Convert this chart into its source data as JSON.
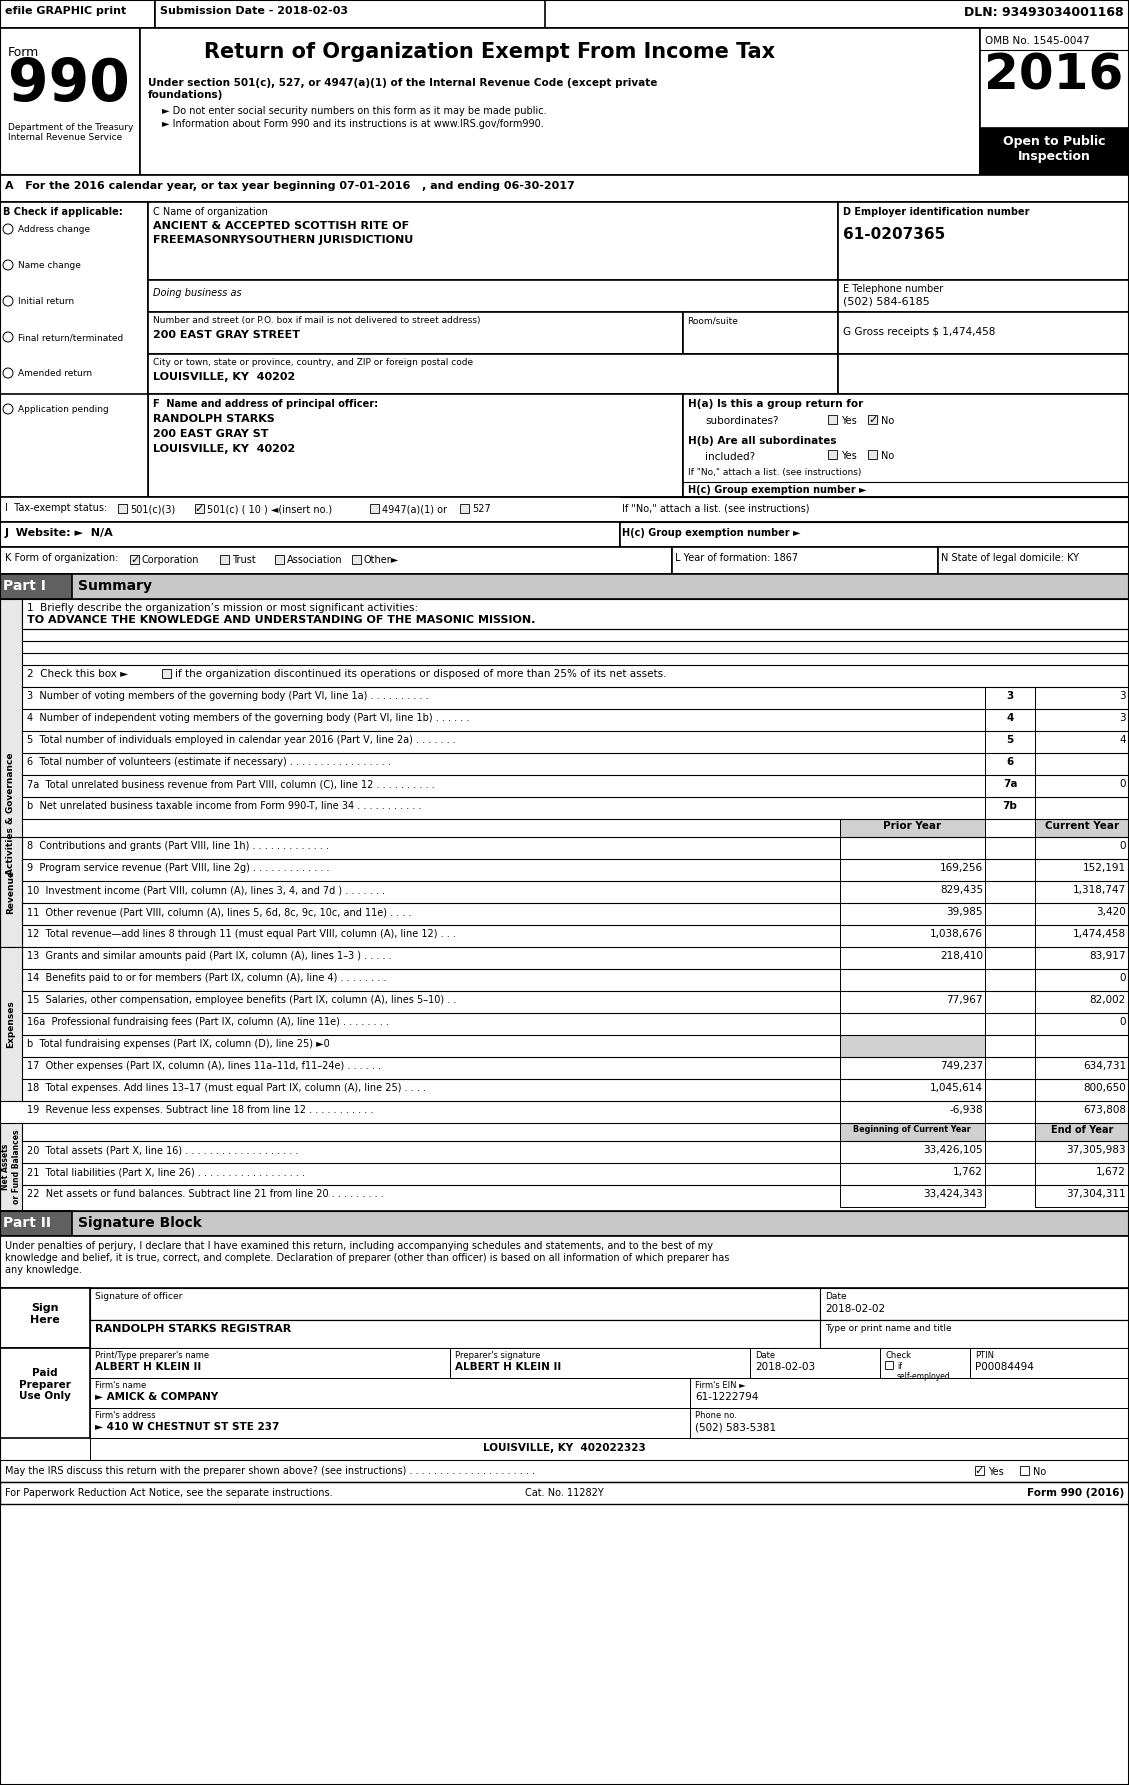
{
  "title": "Return of Organization Exempt From Income Tax",
  "year": "2016",
  "omb": "OMB No. 1545-0047",
  "open_to_public": "Open to Public\nInspection",
  "efile_text": "efile GRAPHIC print",
  "submission_date": "Submission Date - 2018-02-03",
  "dln": "DLN: 93493034001168",
  "form_number": "990",
  "under_section": "Under section 501(c), 527, or 4947(a)(1) of the Internal Revenue Code (except private foundations)",
  "bullet1": "► Do not enter social security numbers on this form as it may be made public.",
  "bullet2": "► Information about Form 990 and its instructions is at www.IRS.gov/form990.",
  "dept_treasury": "Department of the Treasury\nInternal Revenue Service",
  "section_a": "A   For the 2016 calendar year, or tax year beginning 07-01-2016   , and ending 06-30-2017",
  "section_b_label": "B Check if applicable:",
  "checkboxes_b": [
    "Address change",
    "Name change",
    "Initial return",
    "Final return/terminated",
    "Amended return",
    "Application pending"
  ],
  "org_name": "ANCIENT & ACCEPTED SCOTTISH RITE OF\nFREEMASONRYSOUTHERN JURISDICTIONU",
  "doing_business": "Doing business as",
  "address": "200 EAST GRAY STREET",
  "city": "LOUISVILLE, KY  40202",
  "ein": "61-0207365",
  "phone": "(502) 584-6185",
  "gross_receipts": "G Gross receipts $ 1,474,458",
  "principal_name": "RANDOLPH STARKS",
  "principal_address": "200 EAST GRAY ST",
  "principal_city": "LOUISVILLE, KY  40202",
  "if_no_text": "If \"No,\" attach a list. (see instructions)",
  "prior_year": "Prior Year",
  "current_year": "Current Year",
  "line1_text": "TO ADVANCE THE KNOWLEDGE AND UNDERSTANDING OF THE MASONIC MISSION.",
  "line9_current": "152,191",
  "line10_current": "1,318,747",
  "line11_current": "3,420",
  "line12_current": "1,474,458",
  "line9_prior": "169,256",
  "line10_prior": "829,435",
  "line11_prior": "39,985",
  "line12_prior": "1,038,676",
  "line13_prior": "218,410",
  "line13_current": "83,917",
  "line15_prior": "77,967",
  "line15_current": "82,002",
  "line17_prior": "749,237",
  "line17_current": "634,731",
  "line18_prior": "1,045,614",
  "line18_current": "800,650",
  "line19_prior": "-6,938",
  "line19_current": "673,808",
  "line20_boc": "33,426,105",
  "line20_eoy": "37,305,983",
  "line21_boc": "1,762",
  "line21_eoy": "1,672",
  "line22_boc": "33,424,343",
  "line22_eoy": "37,304,311",
  "sig_date": "2018-02-02",
  "sig_name": "RANDOLPH STARKS REGISTRAR",
  "preparer_name": "ALBERT H KLEIN II",
  "preparer_sig": "ALBERT H KLEIN II",
  "preparer_date": "2018-02-03",
  "preparer_ptin": "P00084494",
  "firm_name": "► AMICK & COMPANY",
  "firm_ein": "61-1222794",
  "firm_address": "► 410 W CHESTNUT ST STE 237",
  "firm_phone": "(502) 583-5381",
  "firm_city": "LOUISVILLE, KY  402022323",
  "discuss_label": "May the IRS discuss this return with the preparer shown above? (see instructions) . . . . . . . . . . . . . . . . . . . . .",
  "for_paperwork": "For Paperwork Reduction Act Notice, see the separate instructions.",
  "cat_no": "Cat. No. 11282Y",
  "form_990_footer": "Form 990 (2016)",
  "sig_text_line1": "Under penalties of perjury, I declare that I have examined this return, including accompanying schedules and statements, and to the best of my",
  "sig_text_line2": "knowledge and belief, it is true, correct, and complete. Declaration of preparer (other than officer) is based on all information of which preparer has",
  "sig_text_line3": "any knowledge."
}
